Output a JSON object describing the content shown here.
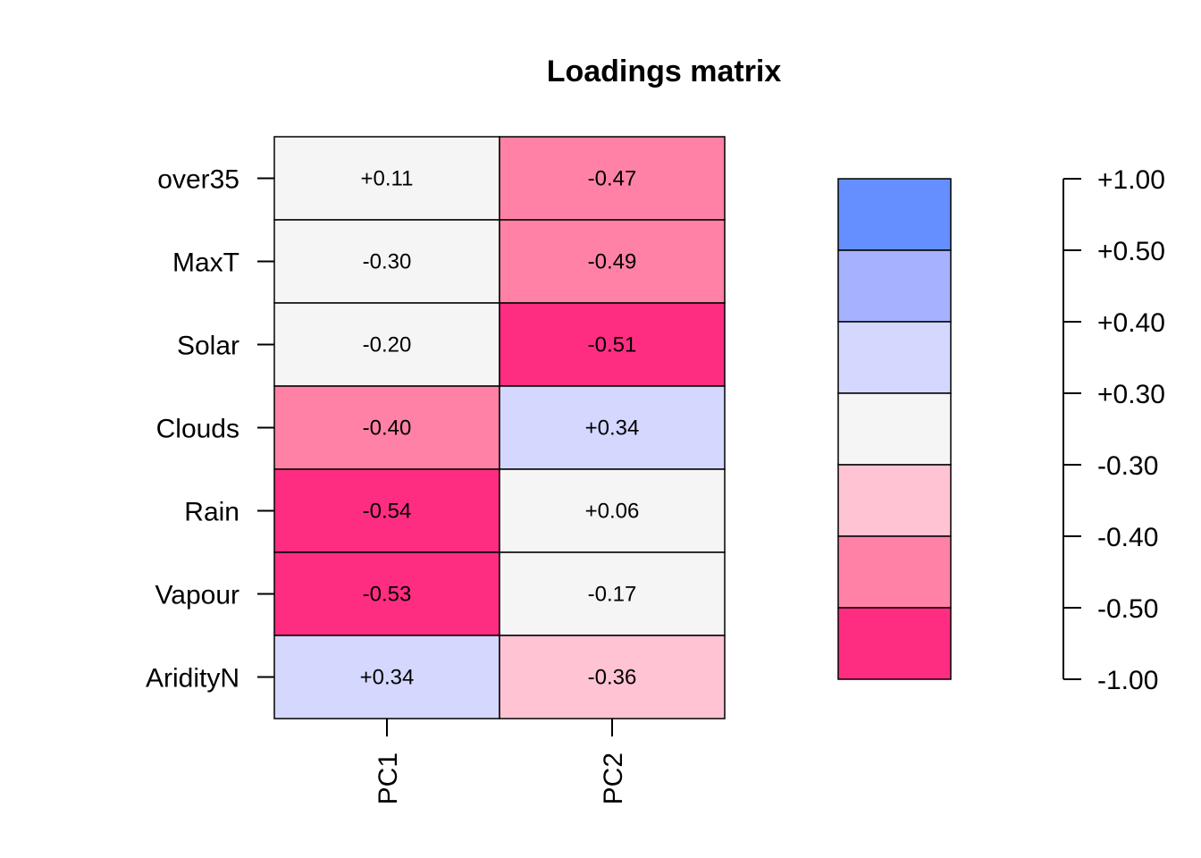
{
  "chart_data": {
    "type": "heatmap",
    "title": "Loadings matrix",
    "rows": [
      "over35",
      "MaxT",
      "Solar",
      "Clouds",
      "Rain",
      "Vapour",
      "AridityN"
    ],
    "columns": [
      "PC1",
      "PC2"
    ],
    "values": [
      [
        "+0.11",
        "-0.47"
      ],
      [
        "-0.30",
        "-0.49"
      ],
      [
        "-0.20",
        "-0.51"
      ],
      [
        "-0.40",
        "+0.34"
      ],
      [
        "-0.54",
        "+0.06"
      ],
      [
        "-0.53",
        "-0.17"
      ],
      [
        "+0.34",
        "-0.36"
      ]
    ],
    "cell_colors": [
      [
        "#f5f5f5",
        "#ff82a6"
      ],
      [
        "#f5f5f5",
        "#ff82a6"
      ],
      [
        "#f5f5f5",
        "#ff2d82"
      ],
      [
        "#ff82a6",
        "#d4d8ff"
      ],
      [
        "#ff2d82",
        "#f5f5f5"
      ],
      [
        "#ff2d82",
        "#f5f5f5"
      ],
      [
        "#d4d8ff",
        "#ffc3d4"
      ]
    ],
    "scale": {
      "breaks": [
        "+1.00",
        "+0.50",
        "+0.40",
        "+0.30",
        "-0.30",
        "-0.40",
        "-0.50",
        "-1.00"
      ],
      "colors_top_to_bottom": [
        "#658ffe",
        "#a6b2ff",
        "#d4d8ff",
        "#f5f5f5",
        "#ffc3d4",
        "#ff82a6",
        "#ff2d82"
      ]
    },
    "grid": false,
    "legend_position": "right"
  }
}
